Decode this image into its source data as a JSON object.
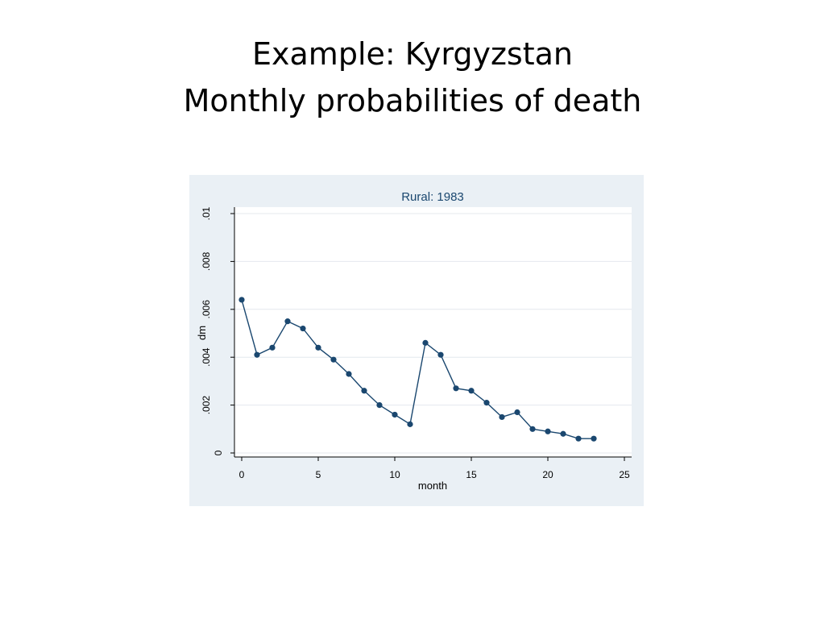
{
  "slide": {
    "title_line1": "Example:  Kyrgyzstan",
    "title_line2": "Monthly probabilities of death"
  },
  "colors": {
    "outer_bg": "#eaf0f5",
    "plot_bg": "#ffffff",
    "series": "#1a476f",
    "grid": "#e4e8ee",
    "axis": "#000000",
    "subtitle": "#1a476f"
  },
  "chart_data": {
    "type": "line",
    "title": "Rural: 1983",
    "xlabel": "month",
    "ylabel": "dm",
    "xlim": [
      0,
      25
    ],
    "ylim": [
      0,
      0.01
    ],
    "xticks": [
      0,
      5,
      10,
      15,
      20,
      25
    ],
    "xtick_labels": [
      "0",
      "5",
      "10",
      "15",
      "20",
      "25"
    ],
    "yticks": [
      0,
      0.002,
      0.004,
      0.006,
      0.008,
      0.01
    ],
    "ytick_labels": [
      "0",
      ".002",
      ".004",
      ".006",
      ".008",
      ".01"
    ],
    "grid": true,
    "markers": true,
    "series": [
      {
        "x": [
          0,
          1,
          2,
          3,
          4,
          5,
          6,
          7,
          8,
          9,
          10,
          11,
          12,
          13,
          14,
          15,
          16,
          17,
          18,
          19,
          20,
          21,
          22,
          23
        ],
        "values": [
          0.0064,
          0.0041,
          0.0044,
          0.0055,
          0.0052,
          0.0044,
          0.0039,
          0.0033,
          0.0026,
          0.002,
          0.0016,
          0.0012,
          0.0046,
          0.0041,
          0.0027,
          0.0026,
          0.0021,
          0.0015,
          0.0017,
          0.001,
          0.0009,
          0.0008,
          0.0006,
          0.0006
        ]
      }
    ]
  }
}
